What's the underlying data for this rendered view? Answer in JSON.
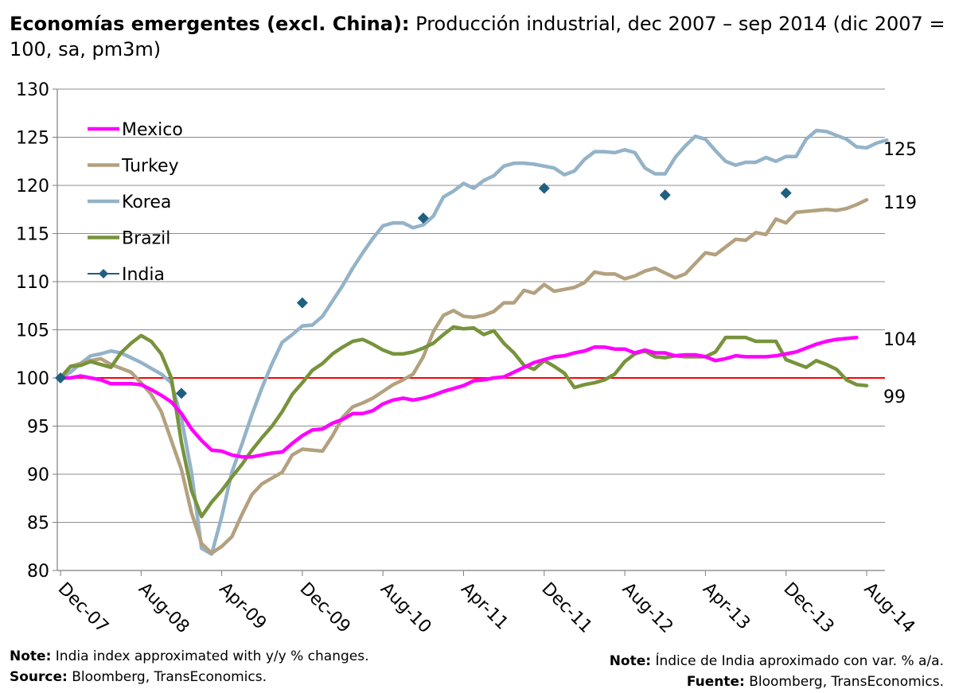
{
  "title": {
    "bold": "Economías emergentes (excl. China):",
    "rest": " Producción industrial, dec 2007 – sep 2014 (dic 2007 = 100, sa, pm3m)"
  },
  "notes": {
    "left_note_label": "Note:",
    "left_note_text": " India index approximated with y/y % changes.",
    "left_source_label": "Source:",
    "left_source_text": " Bloomberg, TransEconomics.",
    "right_note_label": "Note:",
    "right_note_text": " Índice de India aproximado con var. % a/a.",
    "right_source_label": "Fuente:",
    "right_source_text": " Bloomberg, TransEconomics."
  },
  "chart_data": {
    "type": "line",
    "ylim": [
      80,
      130
    ],
    "yticks": [
      80,
      85,
      90,
      95,
      100,
      105,
      110,
      115,
      120,
      125,
      130
    ],
    "x_range_months": [
      0,
      80
    ],
    "xticks": [
      {
        "label": "Dec-07",
        "m": 0
      },
      {
        "label": "Aug-08",
        "m": 8
      },
      {
        "label": "Apr-09",
        "m": 16
      },
      {
        "label": "Dec-09",
        "m": 24
      },
      {
        "label": "Aug-10",
        "m": 32
      },
      {
        "label": "Apr-11",
        "m": 40
      },
      {
        "label": "Dec-11",
        "m": 48
      },
      {
        "label": "Aug-12",
        "m": 56
      },
      {
        "label": "Apr-13",
        "m": 64
      },
      {
        "label": "Dec-13",
        "m": 72
      },
      {
        "label": "Aug-14",
        "m": 80
      }
    ],
    "grid": true,
    "legend_position": "top-left",
    "reference_line": {
      "y": 100,
      "color": "#ff0000"
    },
    "series": [
      {
        "name": "Mexico",
        "color": "#ff00ff",
        "style": "line",
        "end_label": "104",
        "values": [
          100,
          100,
          100.2,
          100,
          99.8,
          99.4,
          99.4,
          99.4,
          99.3,
          98.8,
          98.2,
          97.5,
          96.3,
          94.7,
          93.5,
          92.5,
          92.4,
          92,
          91.8,
          91.8,
          92,
          92.2,
          92.3,
          93.2,
          94,
          94.6,
          94.7,
          95.3,
          95.7,
          96.3,
          96.3,
          96.6,
          97.3,
          97.7,
          97.9,
          97.7,
          97.9,
          98.2,
          98.6,
          98.9,
          99.2,
          99.7,
          99.8,
          100,
          100.1,
          100.6,
          101.1,
          101.6,
          101.9,
          102.2,
          102.3,
          102.6,
          102.8,
          103.2,
          103.2,
          103,
          103,
          102.6,
          102.9,
          102.6,
          102.6,
          102.3,
          102.4,
          102.4,
          102.2,
          101.8,
          102,
          102.3,
          102.2,
          102.2,
          102.2,
          102.3,
          102.5,
          102.7,
          103.1,
          103.5,
          103.8,
          104,
          104.1,
          104.2
        ]
      },
      {
        "name": "Turkey",
        "color": "#b3a17f",
        "style": "line",
        "end_label": "119",
        "values": [
          100,
          101.2,
          101.5,
          101.8,
          102,
          101.4,
          101,
          100.6,
          99.5,
          98.3,
          96.5,
          93.5,
          90.5,
          86,
          82.8,
          81.8,
          82.5,
          83.5,
          85.8,
          87.9,
          89,
          89.6,
          90.2,
          92,
          92.6,
          92.5,
          92.4,
          94,
          95.9,
          97,
          97.4,
          97.9,
          98.6,
          99.3,
          99.8,
          100.4,
          102.2,
          104.8,
          106.5,
          107,
          106.4,
          106.3,
          106.5,
          106.9,
          107.8,
          107.8,
          109.1,
          108.8,
          109.7,
          109,
          109.2,
          109.4,
          109.9,
          111,
          110.8,
          110.8,
          110.3,
          110.6,
          111.1,
          111.4,
          110.9,
          110.4,
          110.8,
          111.9,
          113,
          112.8,
          113.6,
          114.4,
          114.3,
          115.1,
          114.9,
          116.5,
          116.1,
          117.2,
          117.3,
          117.4,
          117.5,
          117.4,
          117.6,
          118,
          118.5
        ]
      },
      {
        "name": "Korea",
        "color": "#93b3c8",
        "style": "line",
        "end_label": "125",
        "values": [
          100,
          100.6,
          101.5,
          102.3,
          102.5,
          102.8,
          102.6,
          102.1,
          101.6,
          101,
          100.4,
          99.5,
          95.8,
          90.2,
          82.3,
          81.7,
          85.6,
          90.2,
          93.1,
          96.2,
          99,
          101.5,
          103.7,
          104.5,
          105.4,
          105.5,
          106.4,
          108,
          109.6,
          111.4,
          113,
          114.5,
          115.8,
          116.1,
          116.1,
          115.6,
          115.9,
          116.8,
          118.8,
          119.4,
          120.2,
          119.7,
          120.5,
          121,
          122,
          122.3,
          122.3,
          122.2,
          122,
          121.8,
          121.1,
          121.5,
          122.7,
          123.5,
          123.5,
          123.4,
          123.7,
          123.4,
          121.8,
          121.2,
          121.2,
          122.9,
          124.1,
          125.1,
          124.8,
          123.6,
          122.5,
          122.1,
          122.4,
          122.4,
          122.9,
          122.5,
          123,
          123,
          124.8,
          125.7,
          125.6,
          125.2,
          124.8,
          124,
          123.9,
          124.4,
          124.7
        ]
      },
      {
        "name": "Brazil",
        "color": "#77933c",
        "style": "line",
        "end_label": "99",
        "values": [
          100,
          101.2,
          101.3,
          101.7,
          101.4,
          101.1,
          102.6,
          103.6,
          104.4,
          103.8,
          102.5,
          100,
          93.3,
          88.3,
          85.6,
          87.1,
          88.3,
          89.7,
          91,
          92.5,
          93.8,
          95,
          96.5,
          98.3,
          99.5,
          100.8,
          101.5,
          102.5,
          103.2,
          103.8,
          104,
          103.5,
          102.9,
          102.5,
          102.5,
          102.7,
          103.1,
          103.6,
          104.5,
          105.3,
          105.1,
          105.2,
          104.5,
          104.9,
          103.6,
          102.6,
          101.3,
          100.9,
          101.8,
          101.2,
          100.5,
          99,
          99.3,
          99.5,
          99.8,
          100.4,
          101.7,
          102.5,
          102.8,
          102.2,
          102.1,
          102.3,
          102.2,
          102.2,
          102.2,
          102.7,
          104.2,
          104.2,
          104.2,
          103.8,
          103.8,
          103.8,
          101.9,
          101.5,
          101.1,
          101.8,
          101.4,
          100.9,
          99.8,
          99.3,
          99.2
        ]
      },
      {
        "name": "India",
        "color": "#1f5f80",
        "style": "markers",
        "points": [
          {
            "m": 0,
            "v": 100
          },
          {
            "m": 12,
            "v": 98.4
          },
          {
            "m": 24,
            "v": 107.8
          },
          {
            "m": 36,
            "v": 116.6
          },
          {
            "m": 48,
            "v": 119.7
          },
          {
            "m": 60,
            "v": 119
          },
          {
            "m": 72,
            "v": 119.2
          }
        ]
      }
    ]
  }
}
